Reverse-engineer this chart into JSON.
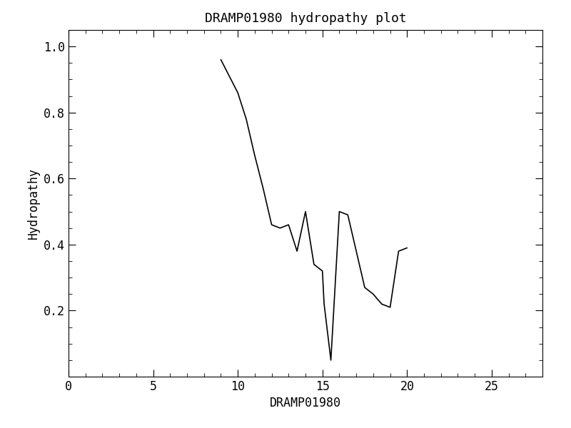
{
  "title": "DRAMP01980 hydropathy plot",
  "xlabel": "DRAMP01980",
  "ylabel": "Hydropathy",
  "xlim": [
    0,
    28
  ],
  "ylim": [
    0,
    1.05
  ],
  "xticks": [
    0,
    5,
    10,
    15,
    20,
    25
  ],
  "yticks": [
    0.2,
    0.4,
    0.6,
    0.8,
    1.0
  ],
  "x_data": [
    9.0,
    10.0,
    10.5,
    11.0,
    11.5,
    12.0,
    12.5,
    13.0,
    13.5,
    14.0,
    14.5,
    15.0,
    15.1,
    15.5,
    16.0,
    16.5,
    17.0,
    17.5,
    18.0,
    18.5,
    19.0,
    19.5,
    20.0
  ],
  "y_data": [
    0.96,
    0.86,
    0.78,
    0.67,
    0.57,
    0.46,
    0.45,
    0.46,
    0.38,
    0.5,
    0.34,
    0.32,
    0.22,
    0.05,
    0.5,
    0.49,
    0.38,
    0.27,
    0.25,
    0.22,
    0.21,
    0.38,
    0.39
  ],
  "line_color": "#000000",
  "line_width": 1.2,
  "bg_color": "#ffffff",
  "font_family": "DejaVu Sans Mono",
  "title_fontsize": 13,
  "label_fontsize": 12,
  "tick_fontsize": 12
}
